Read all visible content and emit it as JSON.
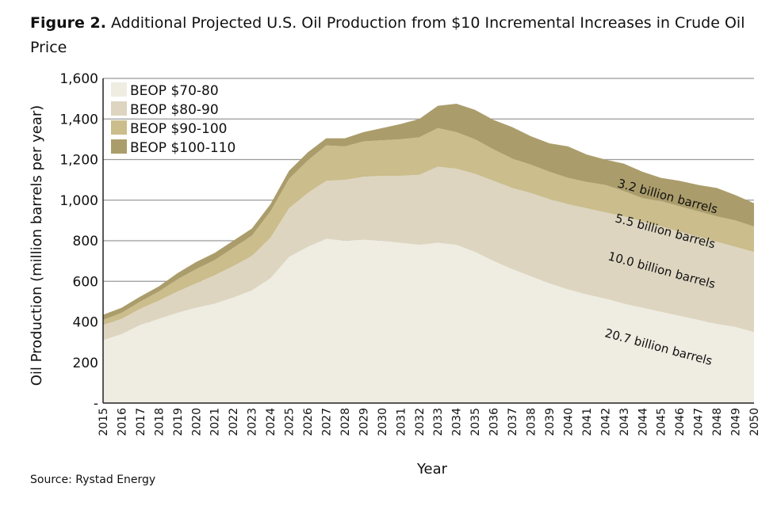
{
  "figure": {
    "label": "Figure 2.",
    "title": "Additional Projected U.S. Oil Production from $10 Incremental Increases in Crude Oil Price",
    "source": "Source: Rystad Energy"
  },
  "chart_data": {
    "type": "area",
    "stacked": true,
    "xlabel": "Year",
    "ylabel": "Oil Production (million barrels per year)",
    "ylim": [
      0,
      1600
    ],
    "yticks": [
      0,
      200,
      400,
      600,
      800,
      1000,
      1200,
      1400,
      1600
    ],
    "ytick_labels": [
      "-",
      "200",
      "400",
      "600",
      "800",
      "1,000",
      "1,200",
      "1,400",
      "1,600"
    ],
    "grid": true,
    "legend_position": "top-left",
    "x": [
      2015,
      2016,
      2017,
      2018,
      2019,
      2020,
      2021,
      2022,
      2023,
      2024,
      2025,
      2026,
      2027,
      2028,
      2029,
      2030,
      2031,
      2032,
      2033,
      2034,
      2035,
      2036,
      2037,
      2038,
      2039,
      2040,
      2041,
      2042,
      2043,
      2044,
      2045,
      2046,
      2047,
      2048,
      2049,
      2050
    ],
    "series": [
      {
        "name": "BEOP $70-80",
        "color": "#efece2",
        "values": [
          310,
          340,
          385,
          415,
          445,
          470,
          490,
          520,
          555,
          615,
          720,
          770,
          810,
          800,
          805,
          800,
          790,
          780,
          790,
          780,
          745,
          700,
          660,
          625,
          590,
          560,
          535,
          515,
          490,
          470,
          450,
          430,
          410,
          390,
          375,
          350
        ]
      },
      {
        "name": "BEOP $80-90",
        "color": "#ddd5c0",
        "values": [
          75,
          75,
          80,
          90,
          105,
          120,
          140,
          155,
          170,
          200,
          240,
          265,
          285,
          300,
          310,
          320,
          330,
          345,
          375,
          375,
          385,
          395,
          400,
          410,
          415,
          420,
          425,
          425,
          430,
          425,
          420,
          415,
          410,
          405,
          395,
          395
        ]
      },
      {
        "name": "BEOP $90-100",
        "color": "#cbbd8c",
        "values": [
          25,
          30,
          35,
          45,
          60,
          70,
          75,
          90,
          100,
          130,
          145,
          160,
          175,
          165,
          175,
          175,
          180,
          185,
          190,
          180,
          170,
          155,
          145,
          140,
          135,
          130,
          130,
          135,
          125,
          115,
          125,
          125,
          125,
          125,
          130,
          125
        ]
      },
      {
        "name": "BEOP $100-110",
        "color": "#ab9d6b",
        "values": [
          25,
          25,
          25,
          25,
          30,
          35,
          35,
          35,
          35,
          35,
          40,
          40,
          35,
          40,
          45,
          60,
          75,
          90,
          110,
          140,
          145,
          145,
          155,
          140,
          140,
          155,
          135,
          125,
          135,
          130,
          115,
          125,
          130,
          140,
          125,
          115
        ]
      }
    ],
    "annotations": [
      "3.2 billion barrels",
      "5.5 billion barrels",
      "10.0 billion barrels",
      "20.7 billion barrels"
    ]
  }
}
